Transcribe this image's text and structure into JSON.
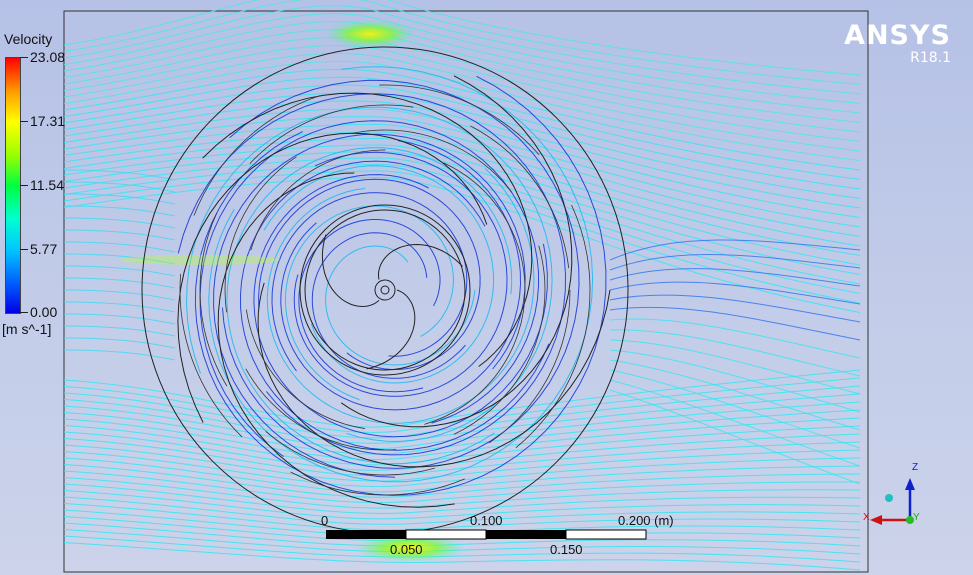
{
  "legend": {
    "title": "Velocity",
    "units": "[m s^-1]",
    "ticks": [
      "23.08",
      "17.31",
      "11.54",
      "5.77",
      "0.00"
    ]
  },
  "logo": {
    "name": "ANSYS",
    "version": "R18.1"
  },
  "scale_bar": {
    "labels_top": [
      "0",
      "0.100",
      "0.200  (m)"
    ],
    "labels_bottom": [
      "0.050",
      "0.150"
    ]
  },
  "axes": {
    "z": "Z",
    "x": "X",
    "y": "Y"
  },
  "colors": {
    "low": "#0000e6",
    "mid": "#00ffd0",
    "high": "#ff0000",
    "streamline_fast": "#33e6f0",
    "streamline_slow": "#1030d8"
  }
}
